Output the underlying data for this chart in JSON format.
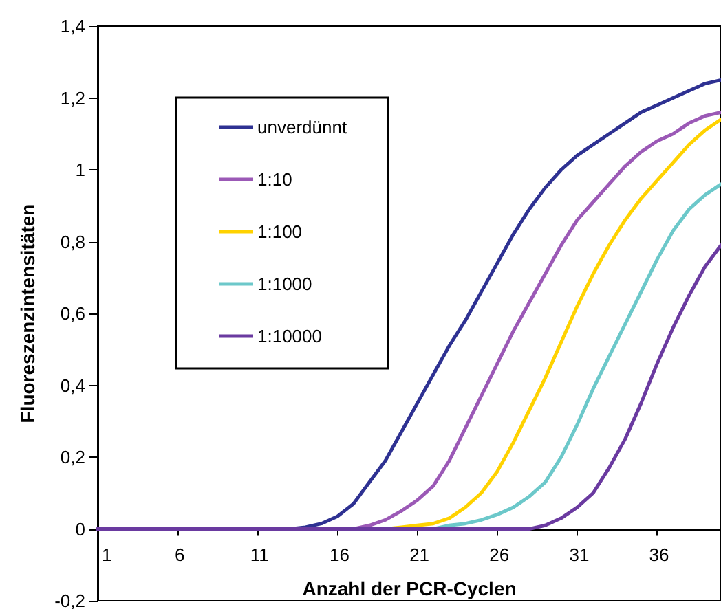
{
  "chart_data": {
    "type": "line",
    "xlabel": "Anzahl der PCR-Cyclen",
    "ylabel": "Fluoreszenzintensitäten",
    "x": [
      1,
      2,
      3,
      4,
      5,
      6,
      7,
      8,
      9,
      10,
      11,
      12,
      13,
      14,
      15,
      16,
      17,
      18,
      19,
      20,
      21,
      22,
      23,
      24,
      25,
      26,
      27,
      28,
      29,
      30,
      31,
      32,
      33,
      34,
      35,
      36,
      37,
      38,
      39,
      40
    ],
    "xlim": [
      1,
      40
    ],
    "xticks": [
      1,
      6,
      11,
      16,
      21,
      26,
      31,
      36
    ],
    "ylim": [
      -0.2,
      1.4
    ],
    "yticks": [
      {
        "value": -0.2,
        "label": "-0,2"
      },
      0,
      {
        "value": 0.2,
        "label": "0,2"
      },
      {
        "value": 0.4,
        "label": "0,4"
      },
      {
        "value": 0.6,
        "label": "0,6"
      },
      {
        "value": 0.8,
        "label": "0,8"
      },
      1,
      {
        "value": 1.2,
        "label": "1,2"
      },
      {
        "value": 1.4,
        "label": "1,4"
      }
    ],
    "grid": false,
    "legend": "top left",
    "marker": "none",
    "line_style": "solid",
    "series": [
      {
        "name": "unverdünnt",
        "color": "#2e3192",
        "values": [
          0,
          0,
          0,
          0,
          0,
          0,
          0,
          0,
          0,
          0,
          0,
          0,
          0,
          0.005,
          0.015,
          0.035,
          0.07,
          0.13,
          0.19,
          0.27,
          0.35,
          0.43,
          0.51,
          0.58,
          0.66,
          0.74,
          0.82,
          0.89,
          0.95,
          1.0,
          1.04,
          1.07,
          1.1,
          1.13,
          1.16,
          1.18,
          1.2,
          1.22,
          1.24,
          1.25
        ]
      },
      {
        "name": "1:10",
        "color": "#9b59b6",
        "values": [
          0,
          0,
          0,
          0,
          0,
          0,
          0,
          0,
          0,
          0,
          0,
          0,
          0,
          0,
          0,
          0,
          0,
          0.01,
          0.025,
          0.05,
          0.08,
          0.12,
          0.19,
          0.28,
          0.37,
          0.46,
          0.55,
          0.63,
          0.71,
          0.79,
          0.86,
          0.91,
          0.96,
          1.01,
          1.05,
          1.08,
          1.1,
          1.13,
          1.15,
          1.16
        ]
      },
      {
        "name": "1:100",
        "color": "#ffd200",
        "values": [
          null,
          null,
          null,
          null,
          null,
          null,
          null,
          null,
          null,
          null,
          null,
          null,
          null,
          null,
          null,
          null,
          null,
          0,
          0,
          0.005,
          0.01,
          0.015,
          0.03,
          0.06,
          0.1,
          0.16,
          0.24,
          0.33,
          0.42,
          0.52,
          0.62,
          0.71,
          0.79,
          0.86,
          0.92,
          0.97,
          1.02,
          1.07,
          1.11,
          1.14
        ]
      },
      {
        "name": "1:1000",
        "color": "#6cc8ca",
        "values": [
          null,
          null,
          null,
          null,
          null,
          null,
          null,
          null,
          null,
          null,
          null,
          null,
          null,
          null,
          null,
          null,
          null,
          null,
          null,
          null,
          null,
          0,
          0.01,
          0.015,
          0.025,
          0.04,
          0.06,
          0.09,
          0.13,
          0.2,
          0.29,
          0.39,
          0.48,
          0.57,
          0.66,
          0.75,
          0.83,
          0.89,
          0.93,
          0.96
        ]
      },
      {
        "name": "1:10000",
        "color": "#6a3aa0",
        "values": [
          0,
          0,
          0,
          0,
          0,
          0,
          0,
          0,
          0,
          0,
          0,
          0,
          0,
          0,
          0,
          0,
          0,
          0,
          0,
          0,
          0,
          0,
          0,
          0,
          0,
          0,
          0,
          0,
          0.01,
          0.03,
          0.06,
          0.1,
          0.17,
          0.25,
          0.35,
          0.46,
          0.56,
          0.65,
          0.73,
          0.79
        ]
      }
    ]
  }
}
